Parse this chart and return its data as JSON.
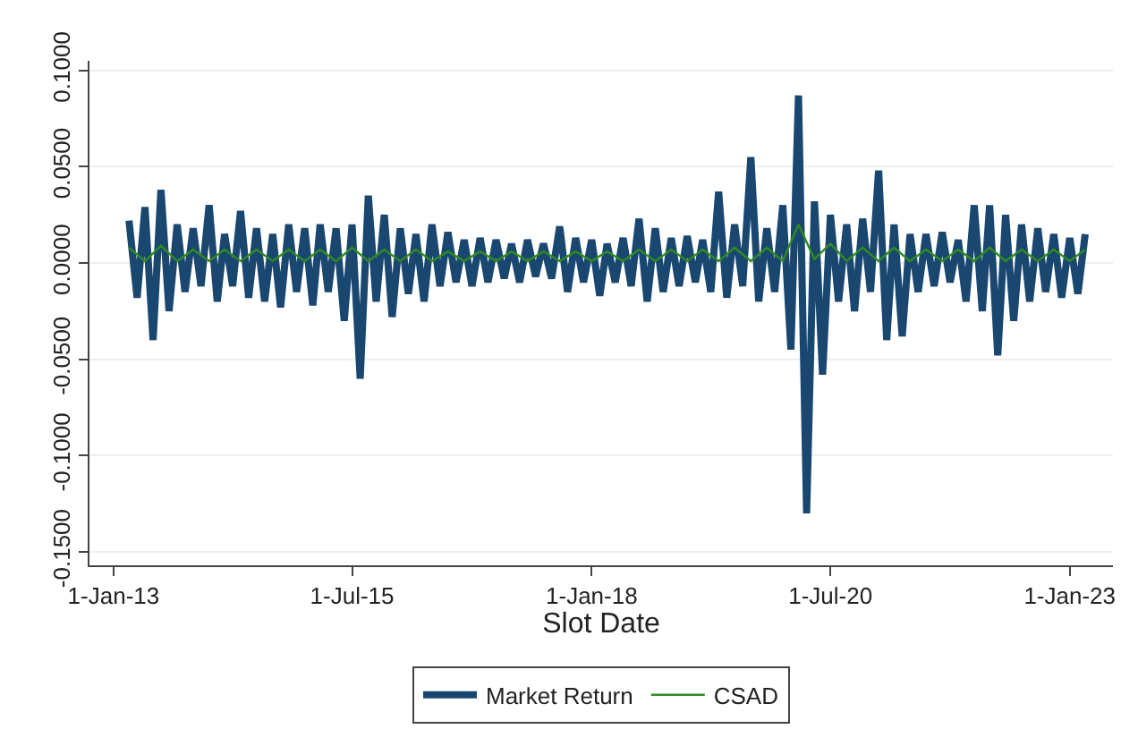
{
  "chart_data": {
    "type": "line",
    "xlabel": "Slot Date",
    "xlim": [
      "2012-10-01",
      "2023-06-15"
    ],
    "xticks": [
      {
        "value": "2013-01-01",
        "label": "1-Jan-13"
      },
      {
        "value": "2015-07-01",
        "label": "1-Jul-15"
      },
      {
        "value": "2018-01-01",
        "label": "1-Jan-18"
      },
      {
        "value": "2020-07-01",
        "label": "1-Jul-20"
      },
      {
        "value": "2023-01-01",
        "label": "1-Jan-23"
      }
    ],
    "ylim": [
      -0.157,
      0.105
    ],
    "yticks": [
      {
        "value": -0.15,
        "label": "-0.1500"
      },
      {
        "value": -0.1,
        "label": "-0.1000"
      },
      {
        "value": -0.05,
        "label": "-0.0500"
      },
      {
        "value": 0,
        "label": "0.0000"
      },
      {
        "value": 0.05,
        "label": "0.0500"
      },
      {
        "value": 0.1,
        "label": "0.1000"
      }
    ],
    "grid": "y",
    "legend": "bottom",
    "line_style": "solid",
    "series": [
      {
        "name": "Market Return",
        "color": "#1a476f",
        "x": [
          "2013-03",
          "2013-04",
          "2013-05",
          "2013-06",
          "2013-07",
          "2013-08",
          "2013-09",
          "2013-10",
          "2013-11",
          "2013-12",
          "2014-01",
          "2014-02",
          "2014-03",
          "2014-04",
          "2014-05",
          "2014-06",
          "2014-07",
          "2014-08",
          "2014-09",
          "2014-10",
          "2014-11",
          "2014-12",
          "2015-01",
          "2015-02",
          "2015-03",
          "2015-04",
          "2015-05",
          "2015-06",
          "2015-07",
          "2015-08",
          "2015-09",
          "2015-10",
          "2015-11",
          "2015-12",
          "2016-01",
          "2016-02",
          "2016-03",
          "2016-04",
          "2016-05",
          "2016-06",
          "2016-07",
          "2016-08",
          "2016-09",
          "2016-10",
          "2016-11",
          "2016-12",
          "2017-01",
          "2017-02",
          "2017-03",
          "2017-04",
          "2017-05",
          "2017-06",
          "2017-07",
          "2017-08",
          "2017-09",
          "2017-10",
          "2017-11",
          "2017-12",
          "2018-01",
          "2018-02",
          "2018-03",
          "2018-04",
          "2018-05",
          "2018-06",
          "2018-07",
          "2018-08",
          "2018-09",
          "2018-10",
          "2018-11",
          "2018-12",
          "2019-01",
          "2019-02",
          "2019-03",
          "2019-04",
          "2019-05",
          "2019-06",
          "2019-07",
          "2019-08",
          "2019-09",
          "2019-10",
          "2019-11",
          "2019-12",
          "2020-01",
          "2020-02",
          "2020-03",
          "2020-04",
          "2020-05",
          "2020-06",
          "2020-07",
          "2020-08",
          "2020-09",
          "2020-10",
          "2020-11",
          "2020-12",
          "2021-01",
          "2021-02",
          "2021-03",
          "2021-04",
          "2021-05",
          "2021-06",
          "2021-07",
          "2021-08",
          "2021-09",
          "2021-10",
          "2021-11",
          "2021-12",
          "2022-01",
          "2022-02",
          "2022-03",
          "2022-04",
          "2022-05",
          "2022-06",
          "2022-07",
          "2022-08",
          "2022-09",
          "2022-10",
          "2022-11",
          "2022-12",
          "2023-01",
          "2023-02",
          "2023-03"
        ],
        "values": [
          0.022,
          -0.018,
          0.029,
          -0.04,
          0.038,
          -0.025,
          0.02,
          -0.015,
          0.018,
          -0.012,
          0.03,
          -0.02,
          0.015,
          -0.012,
          0.027,
          -0.018,
          0.018,
          -0.02,
          0.015,
          -0.023,
          0.02,
          -0.015,
          0.018,
          -0.022,
          0.02,
          -0.015,
          0.018,
          -0.03,
          0.02,
          -0.06,
          0.035,
          -0.02,
          0.025,
          -0.028,
          0.018,
          -0.016,
          0.015,
          -0.02,
          0.02,
          -0.012,
          0.016,
          -0.01,
          0.012,
          -0.012,
          0.013,
          -0.01,
          0.012,
          -0.008,
          0.01,
          -0.01,
          0.012,
          -0.007,
          0.01,
          -0.008,
          0.019,
          -0.015,
          0.013,
          -0.01,
          0.012,
          -0.017,
          0.01,
          -0.01,
          0.013,
          -0.012,
          0.023,
          -0.02,
          0.018,
          -0.015,
          0.013,
          -0.012,
          0.014,
          -0.01,
          0.012,
          -0.015,
          0.037,
          -0.018,
          0.02,
          -0.012,
          0.055,
          -0.02,
          0.018,
          -0.015,
          0.03,
          -0.045,
          0.087,
          -0.13,
          0.032,
          -0.058,
          0.025,
          -0.02,
          0.02,
          -0.025,
          0.023,
          -0.015,
          0.048,
          -0.04,
          0.02,
          -0.038,
          0.015,
          -0.015,
          0.015,
          -0.012,
          0.016,
          -0.01,
          0.012,
          -0.02,
          0.03,
          -0.025,
          0.03,
          -0.048,
          0.025,
          -0.03,
          0.02,
          -0.02,
          0.018,
          -0.015,
          0.015,
          -0.018,
          0.013,
          -0.016,
          0.015
        ]
      },
      {
        "name": "CSAD",
        "color": "#2e8b20",
        "x": [
          "2013-03",
          "2013-05",
          "2013-07",
          "2013-09",
          "2013-11",
          "2014-01",
          "2014-03",
          "2014-05",
          "2014-07",
          "2014-09",
          "2014-11",
          "2015-01",
          "2015-03",
          "2015-05",
          "2015-07",
          "2015-09",
          "2015-11",
          "2016-01",
          "2016-03",
          "2016-05",
          "2016-07",
          "2016-09",
          "2016-11",
          "2017-01",
          "2017-03",
          "2017-05",
          "2017-07",
          "2017-09",
          "2017-11",
          "2018-01",
          "2018-03",
          "2018-05",
          "2018-07",
          "2018-09",
          "2018-11",
          "2019-01",
          "2019-03",
          "2019-05",
          "2019-07",
          "2019-09",
          "2019-11",
          "2020-01",
          "2020-03",
          "2020-05",
          "2020-07",
          "2020-09",
          "2020-11",
          "2021-01",
          "2021-03",
          "2021-05",
          "2021-07",
          "2021-09",
          "2021-11",
          "2022-01",
          "2022-03",
          "2022-05",
          "2022-07",
          "2022-09",
          "2022-11",
          "2023-01",
          "2023-03"
        ],
        "values": [
          0.008,
          0.001,
          0.009,
          0.001,
          0.007,
          0.001,
          0.007,
          0.001,
          0.007,
          0.001,
          0.007,
          0.001,
          0.007,
          0.001,
          0.008,
          0.001,
          0.007,
          0.001,
          0.007,
          0.001,
          0.006,
          0.001,
          0.006,
          0.001,
          0.006,
          0.001,
          0.006,
          0.001,
          0.006,
          0.001,
          0.006,
          0.001,
          0.007,
          0.001,
          0.007,
          0.001,
          0.007,
          0.001,
          0.008,
          0.001,
          0.008,
          0.001,
          0.02,
          0.002,
          0.01,
          0.001,
          0.008,
          0.001,
          0.008,
          0.001,
          0.007,
          0.001,
          0.007,
          0.001,
          0.008,
          0.001,
          0.007,
          0.001,
          0.007,
          0.001,
          0.007
        ]
      }
    ]
  }
}
